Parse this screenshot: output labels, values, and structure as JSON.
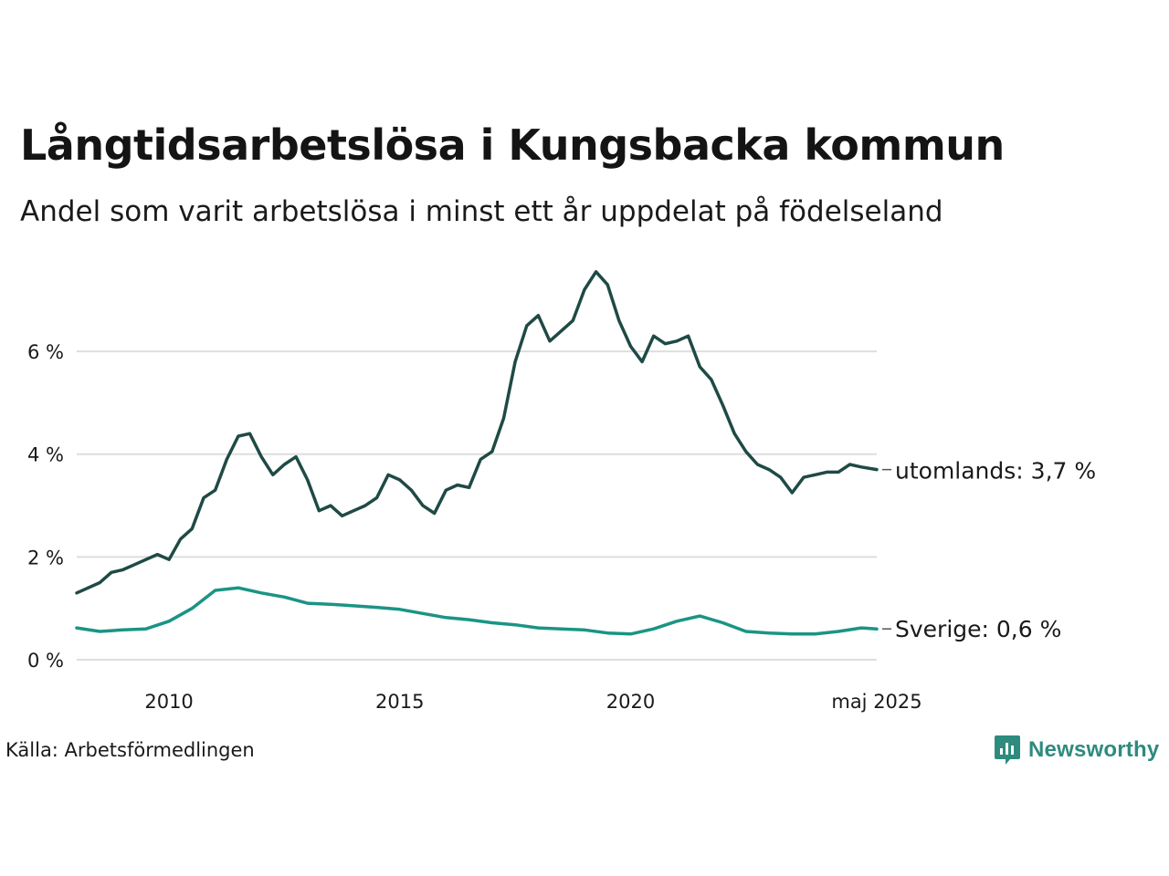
{
  "brand": {
    "name": "Newsworthy",
    "icon": "newsworthy-logo-icon",
    "color": "#2e8b7e"
  },
  "source": "Källa: Arbetsförmedlingen",
  "chart_data": {
    "type": "line",
    "title": "Långtidsarbetslösa i Kungsbacka kommun",
    "subtitle": "Andel som varit arbetslösa i minst ett år uppdelat på födelseland",
    "xlabel": "",
    "ylabel": "",
    "xlim": [
      "2008-01",
      "2025-05"
    ],
    "ylim": [
      0,
      7.6
    ],
    "grid": true,
    "y_ticks": [
      {
        "value": 0,
        "label": "0 %"
      },
      {
        "value": 2,
        "label": "2 %"
      },
      {
        "value": 4,
        "label": "4 %"
      },
      {
        "value": 6,
        "label": "6 %"
      }
    ],
    "x_ticks": [
      {
        "value": "2010-01",
        "label": "2010"
      },
      {
        "value": "2015-01",
        "label": "2015"
      },
      {
        "value": "2020-01",
        "label": "2020"
      },
      {
        "value": "2025-05",
        "label": "maj 2025"
      }
    ],
    "series": [
      {
        "name": "utomlands",
        "end_label": "utomlands: 3,7 %",
        "color": "#1f4a45",
        "points": [
          [
            "2008-01",
            1.3
          ],
          [
            "2008-04",
            1.4
          ],
          [
            "2008-07",
            1.5
          ],
          [
            "2008-10",
            1.7
          ],
          [
            "2009-01",
            1.75
          ],
          [
            "2009-04",
            1.85
          ],
          [
            "2009-07",
            1.95
          ],
          [
            "2009-10",
            2.05
          ],
          [
            "2010-01",
            1.95
          ],
          [
            "2010-04",
            2.35
          ],
          [
            "2010-07",
            2.55
          ],
          [
            "2010-10",
            3.15
          ],
          [
            "2011-01",
            3.3
          ],
          [
            "2011-04",
            3.9
          ],
          [
            "2011-07",
            4.35
          ],
          [
            "2011-10",
            4.4
          ],
          [
            "2012-01",
            3.95
          ],
          [
            "2012-04",
            3.6
          ],
          [
            "2012-07",
            3.8
          ],
          [
            "2012-10",
            3.95
          ],
          [
            "2013-01",
            3.5
          ],
          [
            "2013-04",
            2.9
          ],
          [
            "2013-07",
            3.0
          ],
          [
            "2013-10",
            2.8
          ],
          [
            "2014-01",
            2.9
          ],
          [
            "2014-04",
            3.0
          ],
          [
            "2014-07",
            3.15
          ],
          [
            "2014-10",
            3.6
          ],
          [
            "2015-01",
            3.5
          ],
          [
            "2015-04",
            3.3
          ],
          [
            "2015-07",
            3.0
          ],
          [
            "2015-10",
            2.85
          ],
          [
            "2016-01",
            3.3
          ],
          [
            "2016-04",
            3.4
          ],
          [
            "2016-07",
            3.35
          ],
          [
            "2016-10",
            3.9
          ],
          [
            "2017-01",
            4.05
          ],
          [
            "2017-04",
            4.7
          ],
          [
            "2017-07",
            5.8
          ],
          [
            "2017-10",
            6.5
          ],
          [
            "2018-01",
            6.7
          ],
          [
            "2018-04",
            6.2
          ],
          [
            "2018-07",
            6.4
          ],
          [
            "2018-10",
            6.6
          ],
          [
            "2019-01",
            7.2
          ],
          [
            "2019-04",
            7.55
          ],
          [
            "2019-07",
            7.3
          ],
          [
            "2019-10",
            6.6
          ],
          [
            "2020-01",
            6.1
          ],
          [
            "2020-04",
            5.8
          ],
          [
            "2020-07",
            6.3
          ],
          [
            "2020-10",
            6.15
          ],
          [
            "2021-01",
            6.2
          ],
          [
            "2021-04",
            6.3
          ],
          [
            "2021-07",
            5.7
          ],
          [
            "2021-10",
            5.45
          ],
          [
            "2022-01",
            4.95
          ],
          [
            "2022-04",
            4.4
          ],
          [
            "2022-07",
            4.05
          ],
          [
            "2022-10",
            3.8
          ],
          [
            "2023-01",
            3.7
          ],
          [
            "2023-04",
            3.55
          ],
          [
            "2023-07",
            3.25
          ],
          [
            "2023-10",
            3.55
          ],
          [
            "2024-01",
            3.6
          ],
          [
            "2024-04",
            3.65
          ],
          [
            "2024-07",
            3.65
          ],
          [
            "2024-10",
            3.8
          ],
          [
            "2025-01",
            3.75
          ],
          [
            "2025-05",
            3.7
          ]
        ]
      },
      {
        "name": "Sverige",
        "end_label": "Sverige: 0,6 %",
        "color": "#1a9485",
        "points": [
          [
            "2008-01",
            0.62
          ],
          [
            "2008-07",
            0.55
          ],
          [
            "2009-01",
            0.58
          ],
          [
            "2009-07",
            0.6
          ],
          [
            "2010-01",
            0.75
          ],
          [
            "2010-07",
            1.0
          ],
          [
            "2011-01",
            1.35
          ],
          [
            "2011-07",
            1.4
          ],
          [
            "2012-01",
            1.3
          ],
          [
            "2012-07",
            1.22
          ],
          [
            "2013-01",
            1.1
          ],
          [
            "2013-07",
            1.08
          ],
          [
            "2014-01",
            1.05
          ],
          [
            "2014-07",
            1.02
          ],
          [
            "2015-01",
            0.98
          ],
          [
            "2015-07",
            0.9
          ],
          [
            "2016-01",
            0.82
          ],
          [
            "2016-07",
            0.78
          ],
          [
            "2017-01",
            0.72
          ],
          [
            "2017-07",
            0.68
          ],
          [
            "2018-01",
            0.62
          ],
          [
            "2018-07",
            0.6
          ],
          [
            "2019-01",
            0.58
          ],
          [
            "2019-07",
            0.52
          ],
          [
            "2020-01",
            0.5
          ],
          [
            "2020-07",
            0.6
          ],
          [
            "2021-01",
            0.75
          ],
          [
            "2021-07",
            0.85
          ],
          [
            "2022-01",
            0.72
          ],
          [
            "2022-07",
            0.55
          ],
          [
            "2023-01",
            0.52
          ],
          [
            "2023-07",
            0.5
          ],
          [
            "2024-01",
            0.5
          ],
          [
            "2024-07",
            0.55
          ],
          [
            "2025-01",
            0.62
          ],
          [
            "2025-05",
            0.6
          ]
        ]
      }
    ]
  }
}
